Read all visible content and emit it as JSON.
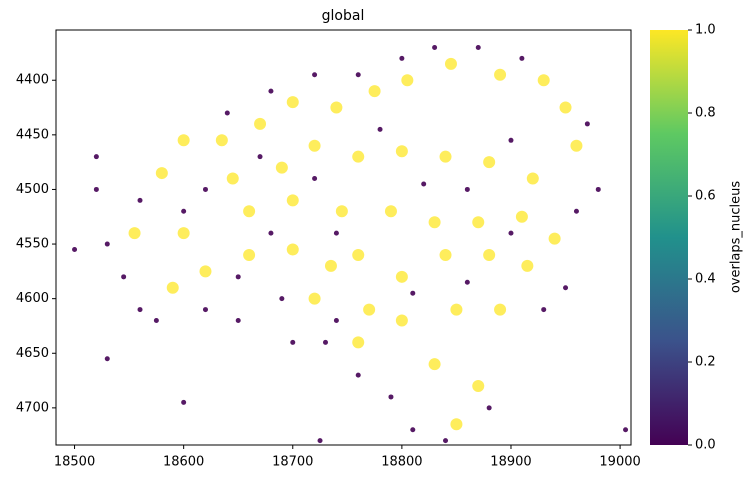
{
  "chart_data": {
    "type": "scatter",
    "title": "global",
    "colorbar_label": "overlaps_nucleus",
    "colormap": [
      "#440154",
      "#3b528b",
      "#21918c",
      "#5ec962",
      "#fde725"
    ],
    "clim": [
      0,
      1
    ],
    "cticks": [
      {
        "value": 0,
        "label": "0.0"
      },
      0.2,
      0.4,
      0.6,
      0.8,
      {
        "value": 1,
        "label": "1.0"
      }
    ],
    "xlim": [
      18483,
      19010
    ],
    "ylim": [
      4734,
      4354
    ],
    "xticks": [
      18500,
      18600,
      18700,
      18800,
      18900,
      19000
    ],
    "yticks": [
      4400,
      4450,
      4500,
      4550,
      4600,
      4650,
      4700
    ],
    "x": [
      18555,
      18580,
      18600,
      18635,
      18645,
      18670,
      18700,
      18740,
      18775,
      18805,
      18845,
      18890,
      18930,
      18950,
      18960,
      18920,
      18880,
      18840,
      18800,
      18760,
      18720,
      18690,
      18660,
      18700,
      18745,
      18790,
      18830,
      18870,
      18910,
      18940,
      18600,
      18620,
      18660,
      18700,
      18735,
      18760,
      18800,
      18840,
      18880,
      18915,
      18590,
      18720,
      18770,
      18800,
      18850,
      18890,
      18760,
      18830,
      18870,
      18850,
      18530,
      18520,
      18560,
      18575,
      18620,
      18650,
      18700,
      18730,
      18760,
      18790,
      18810,
      18840,
      18880,
      18600,
      18640,
      18680,
      18720,
      18760,
      18800,
      18830,
      18870,
      18910,
      18970,
      18980,
      18960,
      18950,
      18930,
      18680,
      18740,
      18820,
      18860,
      18900,
      18780,
      18720,
      18650,
      18690,
      18740,
      18810,
      18860,
      18900,
      18560,
      18545,
      18620,
      18670,
      18520,
      18600,
      18725,
      18530,
      19005,
      18500
    ],
    "y": [
      4540,
      4485,
      4455,
      4455,
      4490,
      4440,
      4420,
      4425,
      4410,
      4400,
      4385,
      4395,
      4400,
      4425,
      4460,
      4490,
      4475,
      4470,
      4465,
      4470,
      4460,
      4480,
      4520,
      4510,
      4520,
      4520,
      4530,
      4530,
      4525,
      4545,
      4540,
      4575,
      4560,
      4555,
      4570,
      4560,
      4580,
      4560,
      4560,
      4570,
      4590,
      4600,
      4610,
      4620,
      4610,
      4610,
      4640,
      4660,
      4680,
      4715,
      4550,
      4500,
      4610,
      4620,
      4610,
      4620,
      4640,
      4640,
      4670,
      4690,
      4720,
      4730,
      4700,
      4520,
      4430,
      4410,
      4395,
      4395,
      4380,
      4370,
      4370,
      4380,
      4440,
      4500,
      4520,
      4590,
      4610,
      4540,
      4540,
      4495,
      4500,
      4455,
      4445,
      4490,
      4580,
      4600,
      4620,
      4595,
      4585,
      4540,
      4510,
      4580,
      4500,
      4470,
      4470,
      4695,
      4730,
      4655,
      4720,
      4555
    ],
    "values": [
      1,
      1,
      1,
      1,
      1,
      1,
      1,
      1,
      1,
      1,
      1,
      1,
      1,
      1,
      1,
      1,
      1,
      1,
      1,
      1,
      1,
      1,
      1,
      1,
      1,
      1,
      1,
      1,
      1,
      1,
      1,
      1,
      1,
      1,
      1,
      1,
      1,
      1,
      1,
      1,
      1,
      1,
      1,
      1,
      1,
      1,
      1,
      1,
      1,
      1,
      0,
      0,
      0,
      0,
      0,
      0,
      0,
      0,
      0,
      0,
      0,
      0,
      0,
      0,
      0,
      0,
      0,
      0,
      0,
      0,
      0,
      0,
      0,
      0,
      0,
      0,
      0,
      0,
      0,
      0,
      0,
      0,
      0,
      0,
      0,
      0,
      0,
      0,
      0,
      0,
      0,
      0,
      0,
      0,
      0,
      0,
      0,
      0,
      0,
      0
    ]
  }
}
